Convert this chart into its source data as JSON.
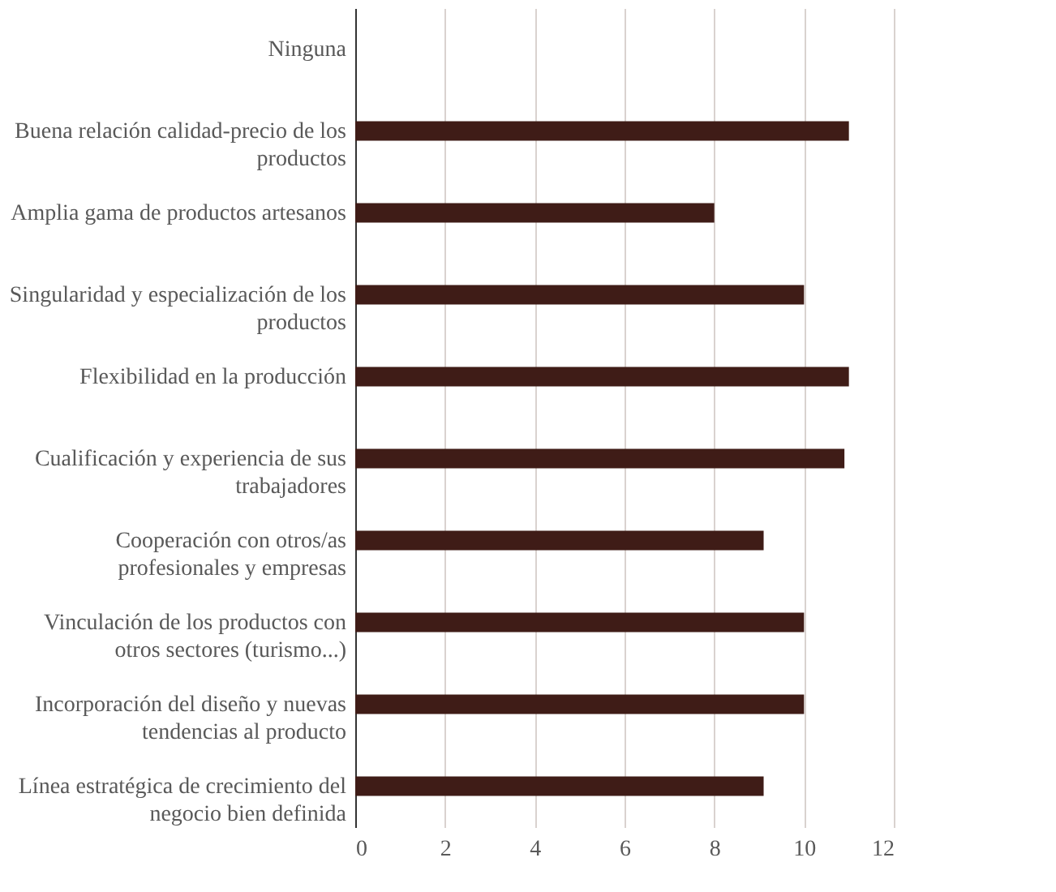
{
  "chart_data": {
    "type": "bar",
    "orientation": "horizontal",
    "categories": [
      "Ninguna",
      "Buena relación calidad-precio de los productos",
      "Amplia gama de productos artesanos",
      "Singularidad y especialización de los productos",
      "Flexibilidad en la producción",
      "Cualificación y experiencia de sus trabajadores",
      "Cooperación con otros/as profesionales y empresas",
      "Vinculación de los productos con otros sectores (turismo...)",
      "Incorporación del diseño y nuevas tendencias al producto",
      "Línea estratégica de crecimiento del negocio bien definida"
    ],
    "values": [
      0,
      11,
      8,
      10,
      11,
      10.9,
      9.1,
      10,
      10,
      9.1
    ],
    "color": "#3f1c17",
    "xlim": [
      0,
      12
    ],
    "xticks": [
      0,
      2,
      4,
      6,
      8,
      10,
      12
    ],
    "grid": "x"
  }
}
